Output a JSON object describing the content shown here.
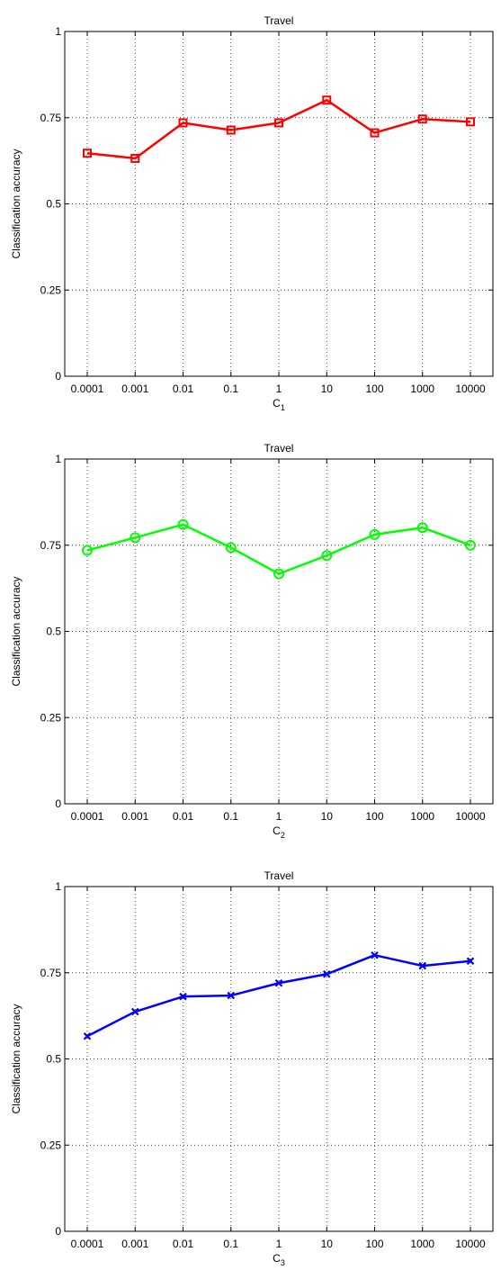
{
  "chart_data": [
    {
      "type": "line",
      "title": "Travel",
      "xlabel": "C",
      "xlabel_sub": "1",
      "ylabel": "Classification accuracy",
      "categories": [
        "0.0001",
        "0.001",
        "0.01",
        "0.1",
        "1",
        "10",
        "100",
        "1000",
        "10000"
      ],
      "yticks": [
        "0",
        "0.25",
        "0.5",
        "0.75",
        "1"
      ],
      "ylim": [
        0,
        1
      ],
      "grid": true,
      "series": [
        {
          "values": [
            0.647,
            0.632,
            0.735,
            0.714,
            0.735,
            0.801,
            0.706,
            0.746,
            0.738
          ],
          "color": "#ff0000",
          "marker": "square"
        }
      ]
    },
    {
      "type": "line",
      "title": "Travel",
      "xlabel": "C",
      "xlabel_sub": "2",
      "ylabel": "Classification accuracy",
      "categories": [
        "0.0001",
        "0.001",
        "0.01",
        "0.1",
        "1",
        "10",
        "100",
        "1000",
        "10000"
      ],
      "yticks": [
        "0",
        "0.25",
        "0.5",
        "0.75",
        "1"
      ],
      "ylim": [
        0,
        1
      ],
      "grid": true,
      "series": [
        {
          "values": [
            0.735,
            0.772,
            0.81,
            0.743,
            0.667,
            0.72,
            0.781,
            0.801,
            0.75
          ],
          "color": "#00ff00",
          "marker": "circle"
        }
      ]
    },
    {
      "type": "line",
      "title": "Travel",
      "xlabel": "C",
      "xlabel_sub": "3",
      "ylabel": "Classification accuracy",
      "categories": [
        "0.0001",
        "0.001",
        "0.01",
        "0.1",
        "1",
        "10",
        "100",
        "1000",
        "10000"
      ],
      "yticks": [
        "0",
        "0.25",
        "0.5",
        "0.75",
        "1"
      ],
      "ylim": [
        0,
        1
      ],
      "grid": true,
      "series": [
        {
          "values": [
            0.566,
            0.637,
            0.681,
            0.684,
            0.72,
            0.746,
            0.801,
            0.77,
            0.784
          ],
          "color": "#0000ff",
          "marker": "x"
        }
      ]
    }
  ]
}
